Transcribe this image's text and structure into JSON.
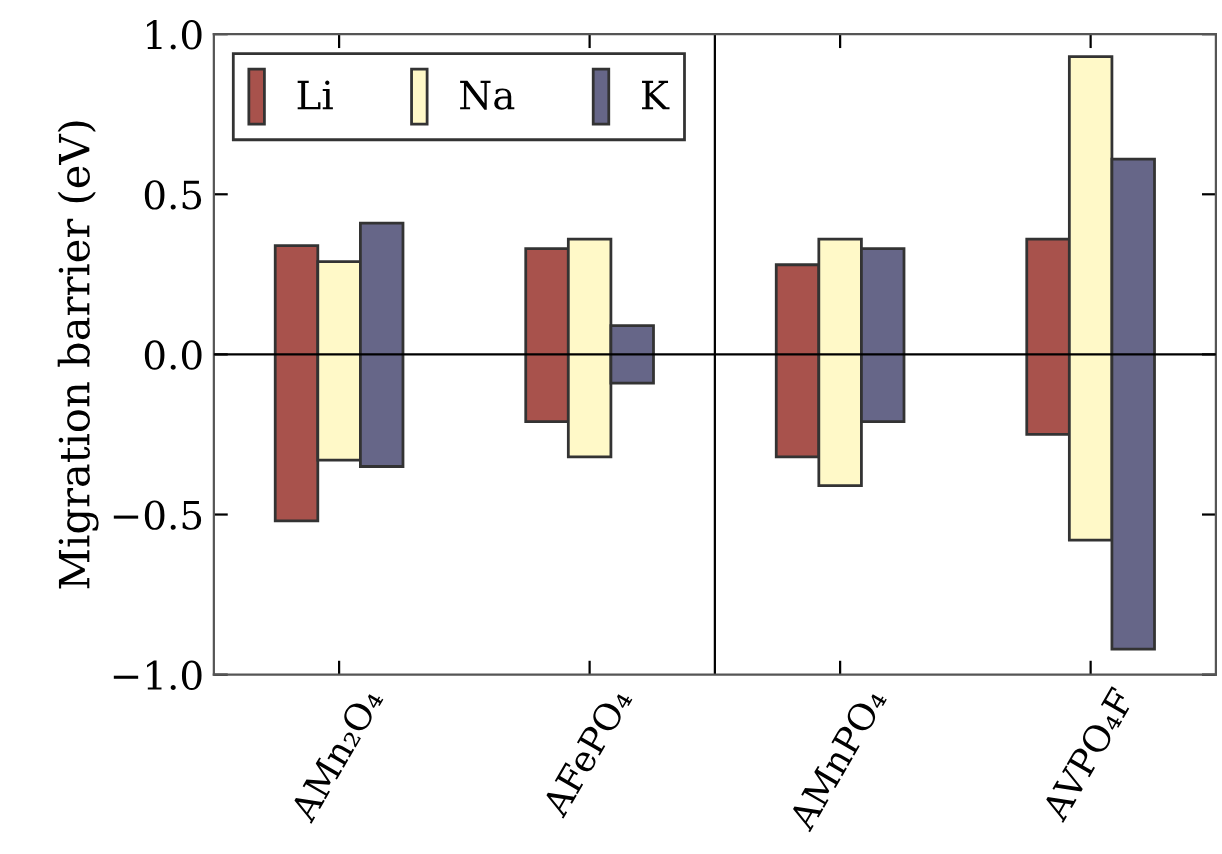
{
  "chart_data": {
    "type": "bar",
    "ylabel": "Migration barrier (eV)",
    "categories": [
      "AMn₂O₄",
      "AFePO₄",
      "AMnPO₄",
      "AVPO₄F"
    ],
    "series": [
      {
        "name": "Li",
        "color": "#a8524c",
        "base": [
          -0.52,
          -0.21,
          -0.32,
          -0.25
        ],
        "values": [
          0.86,
          0.54,
          0.6,
          0.61
        ]
      },
      {
        "name": "Na",
        "color": "#fff9c8",
        "base": [
          -0.33,
          -0.32,
          -0.41,
          -0.58
        ],
        "values": [
          0.62,
          0.68,
          0.77,
          1.51
        ]
      },
      {
        "name": "K",
        "color": "#666688",
        "base": [
          -0.35,
          -0.09,
          -0.21,
          -0.92
        ],
        "values": [
          0.76,
          0.18,
          0.54,
          1.53
        ]
      }
    ],
    "ylim": [
      -1.0,
      1.0
    ],
    "yticks": [
      {
        "value": -1.0,
        "label": "−1.0"
      },
      {
        "value": -0.5,
        "label": "−0.5"
      },
      {
        "value": 0.0,
        "label": "0.0"
      },
      {
        "value": 0.5,
        "label": "0.5"
      },
      {
        "value": 1.0,
        "label": "1.0"
      }
    ],
    "ref_lines": [
      {
        "axis": "y",
        "value": 0
      }
    ],
    "grid": false,
    "legend": "top left"
  }
}
